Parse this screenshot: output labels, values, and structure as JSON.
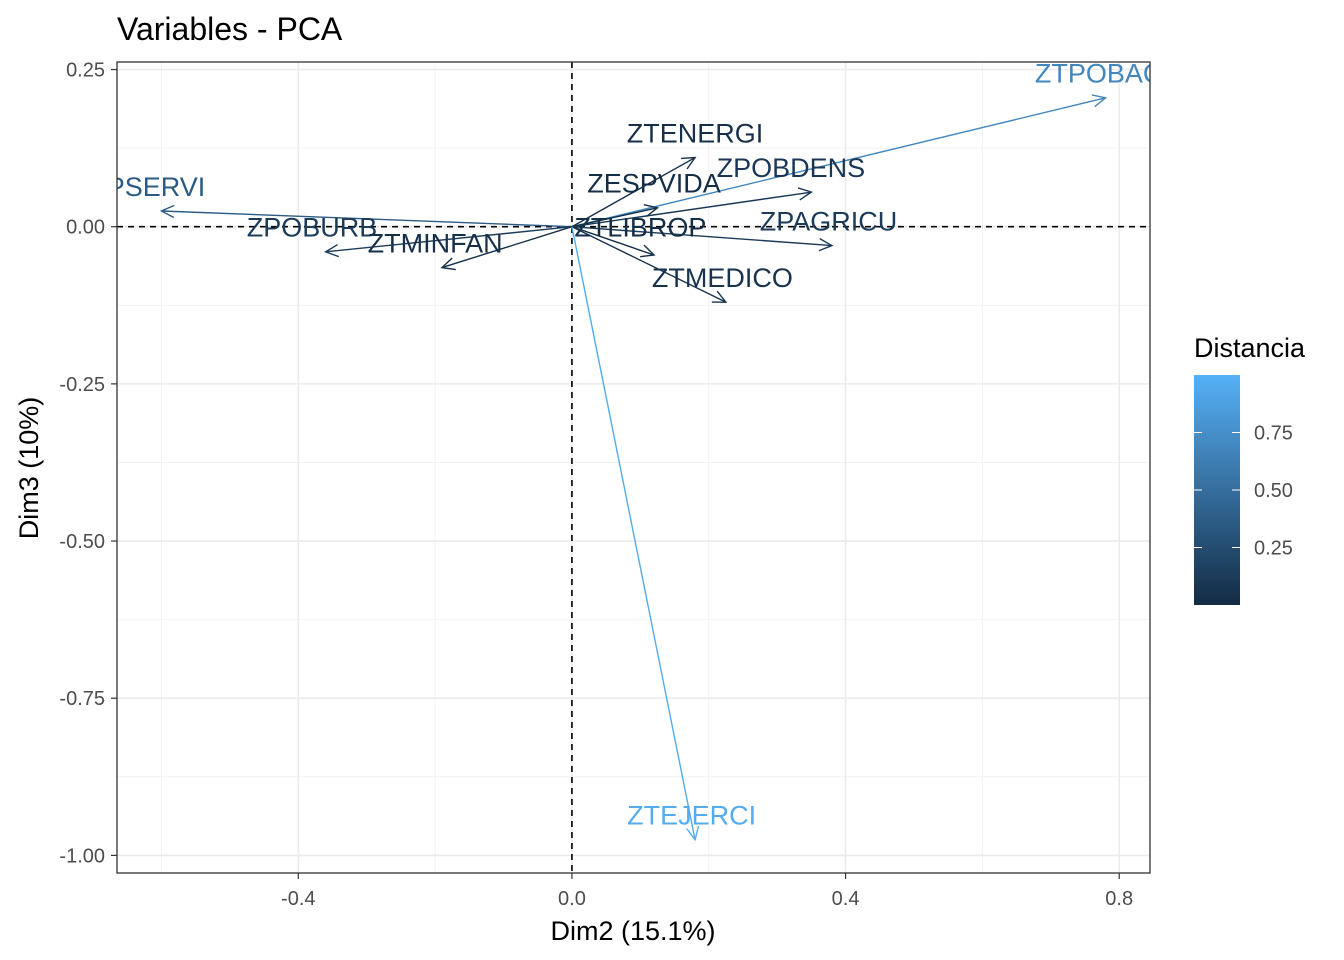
{
  "chart_data": {
    "type": "pca-variable-arrows",
    "title": "Variables - PCA",
    "xlabel": "Dim2 (15.1%)",
    "ylabel": "Dim3 (10%)",
    "xlim": [
      -0.665,
      0.845
    ],
    "ylim": [
      -1.028,
      0.262
    ],
    "x_ticks": [
      -0.4,
      0.0,
      0.4,
      0.8
    ],
    "x_tick_labels": [
      "-0.4",
      "0.0",
      "0.4",
      "0.8"
    ],
    "y_ticks": [
      0.25,
      0.0,
      -0.25,
      -0.5,
      -0.75,
      -1.0
    ],
    "y_tick_labels": [
      "0.25",
      "0.00",
      "-0.25",
      "-0.50",
      "-0.75",
      "-1.00"
    ],
    "grid": true,
    "reference_lines": {
      "x": 0,
      "y": 0,
      "style": "dashed"
    },
    "legend": {
      "title": "Distancia",
      "placement": "right",
      "range": [
        0.0,
        1.0
      ],
      "ticks": [
        0.25,
        0.5,
        0.75
      ],
      "tick_labels": [
        "0.25",
        "0.50",
        "0.75"
      ],
      "low_color": "#132B43",
      "high_color": "#56B1F7"
    },
    "variables": [
      {
        "name": "ZTPOBACT",
        "label": "ZTPOBAC",
        "x": 0.78,
        "y": 0.205,
        "label_x": 0.77,
        "label_y": 0.245,
        "value": 0.68
      },
      {
        "name": "ZTENERGI",
        "label": "ZTENERGI",
        "x": 0.18,
        "y": 0.11,
        "label_x": 0.18,
        "label_y": 0.15,
        "value": 0.04
      },
      {
        "name": "ZPOBDENS",
        "label": "ZPOBDENS",
        "x": 0.35,
        "y": 0.055,
        "label_x": 0.32,
        "label_y": 0.095,
        "value": 0.1
      },
      {
        "name": "ZESPVIDA",
        "label": "ZESPVIDA",
        "x": 0.125,
        "y": 0.03,
        "label_x": 0.12,
        "label_y": 0.07,
        "value": 0.02
      },
      {
        "name": "ZPSERVI",
        "label": "ZPSERVI",
        "x": -0.6,
        "y": 0.025,
        "label_x": -0.62,
        "label_y": 0.065,
        "value": 0.36
      },
      {
        "name": "ZPAGRICU",
        "label": "ZPAGRICU",
        "x": 0.38,
        "y": -0.03,
        "label_x": 0.375,
        "label_y": 0.01,
        "value": 0.12
      },
      {
        "name": "ZPOBURB",
        "label": "ZPOBURB",
        "x": -0.36,
        "y": -0.04,
        "label_x": -0.38,
        "label_y": 0.0,
        "value": 0.13
      },
      {
        "name": "ZTLIBROP",
        "label": "ZTLIBROP",
        "x": 0.12,
        "y": -0.045,
        "label_x": 0.1,
        "label_y": 0.0,
        "value": 0.02
      },
      {
        "name": "ZTMINFAN",
        "label": "ZTMINFAN",
        "x": -0.19,
        "y": -0.065,
        "label_x": -0.2,
        "label_y": -0.025,
        "value": 0.04
      },
      {
        "name": "ZTMEDICO",
        "label": "ZTMEDICO",
        "x": 0.225,
        "y": -0.12,
        "label_x": 0.22,
        "label_y": -0.08,
        "value": 0.06
      },
      {
        "name": "ZTEJERCI",
        "label": "ZTEJERCI",
        "x": 0.18,
        "y": -0.975,
        "label_x": 0.175,
        "label_y": -0.935,
        "value": 0.96
      }
    ]
  }
}
